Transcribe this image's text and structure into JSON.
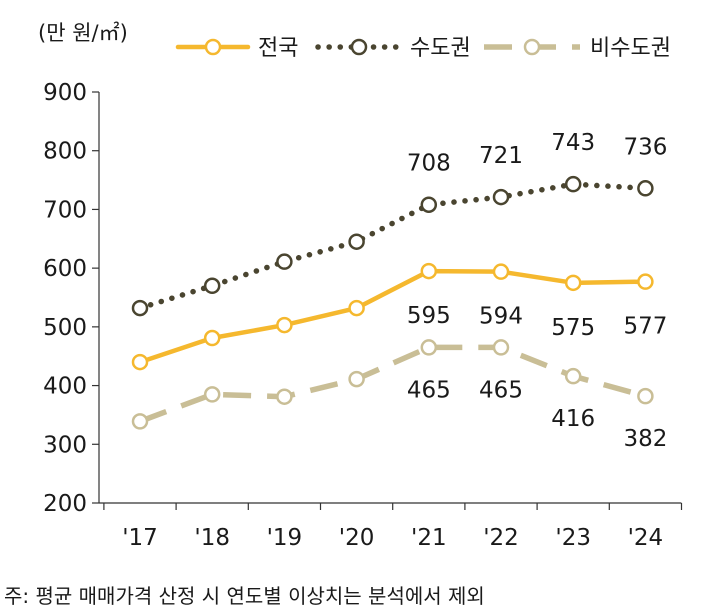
{
  "chart_data": {
    "type": "line",
    "unit_label": "(만 원/㎡)",
    "categories": [
      "'17",
      "'18",
      "'19",
      "'20",
      "'21",
      "'22",
      "'23",
      "'24"
    ],
    "ylim": [
      200,
      900
    ],
    "yticks": [
      200,
      300,
      400,
      500,
      600,
      700,
      800,
      900
    ],
    "grid": false,
    "legend_position": "top",
    "series": [
      {
        "name": "전국",
        "values": [
          440,
          481,
          503,
          532,
          595,
          594,
          575,
          577
        ],
        "color": "#F5B82E",
        "style": "solid",
        "labels": {
          "4": "595",
          "5": "594",
          "6": "575",
          "7": "577"
        }
      },
      {
        "name": "수도권",
        "values": [
          532,
          570,
          611,
          645,
          708,
          721,
          743,
          736
        ],
        "color": "#4A4530",
        "style": "dotted",
        "labels": {
          "4": "708",
          "5": "721",
          "6": "743",
          "7": "736"
        }
      },
      {
        "name": "비수도권",
        "values": [
          339,
          385,
          381,
          411,
          465,
          465,
          416,
          382
        ],
        "color": "#C9BE96",
        "style": "dashed",
        "labels": {
          "4": "465",
          "5": "465",
          "6": "416",
          "7": "382"
        }
      }
    ]
  },
  "footnote": "주: 평균 매매가격 산정 시 연도별 이상치는 분석에서 제외"
}
